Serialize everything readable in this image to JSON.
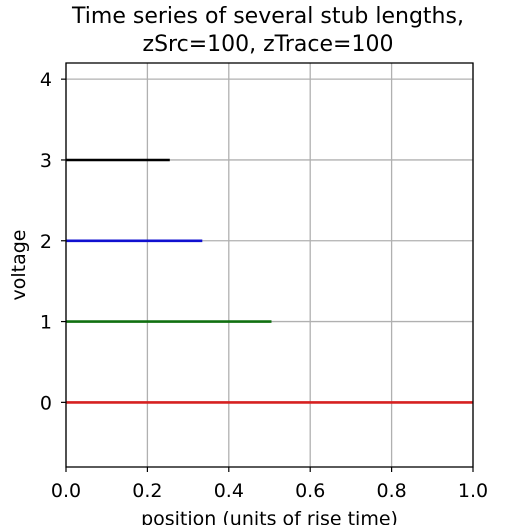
{
  "chart_data": {
    "type": "line",
    "title_line1": "Time series of several stub lengths,",
    "title_line2": "zSrc=100, zTrace=100",
    "xlabel": "position (units of rise time)",
    "ylabel": "voltage",
    "xlim": [
      0.0,
      1.0
    ],
    "ylim": [
      -0.8,
      4.2
    ],
    "x_ticks": [
      "0.0",
      "0.2",
      "0.4",
      "0.6",
      "0.8",
      "1.0"
    ],
    "y_ticks": [
      "0",
      "1",
      "2",
      "3",
      "4"
    ],
    "grid": true,
    "legend": "none",
    "series": [
      {
        "color": "#d62020",
        "x": [
          0.0,
          1.0
        ],
        "y": [
          0,
          0
        ]
      },
      {
        "color": "#107010",
        "x": [
          0.0,
          0.505
        ],
        "y": [
          1,
          1
        ]
      },
      {
        "color": "#1010d0",
        "x": [
          0.0,
          0.335
        ],
        "y": [
          2,
          2
        ]
      },
      {
        "color": "#000000",
        "x": [
          0.0,
          0.255
        ],
        "y": [
          3,
          3
        ]
      }
    ]
  }
}
